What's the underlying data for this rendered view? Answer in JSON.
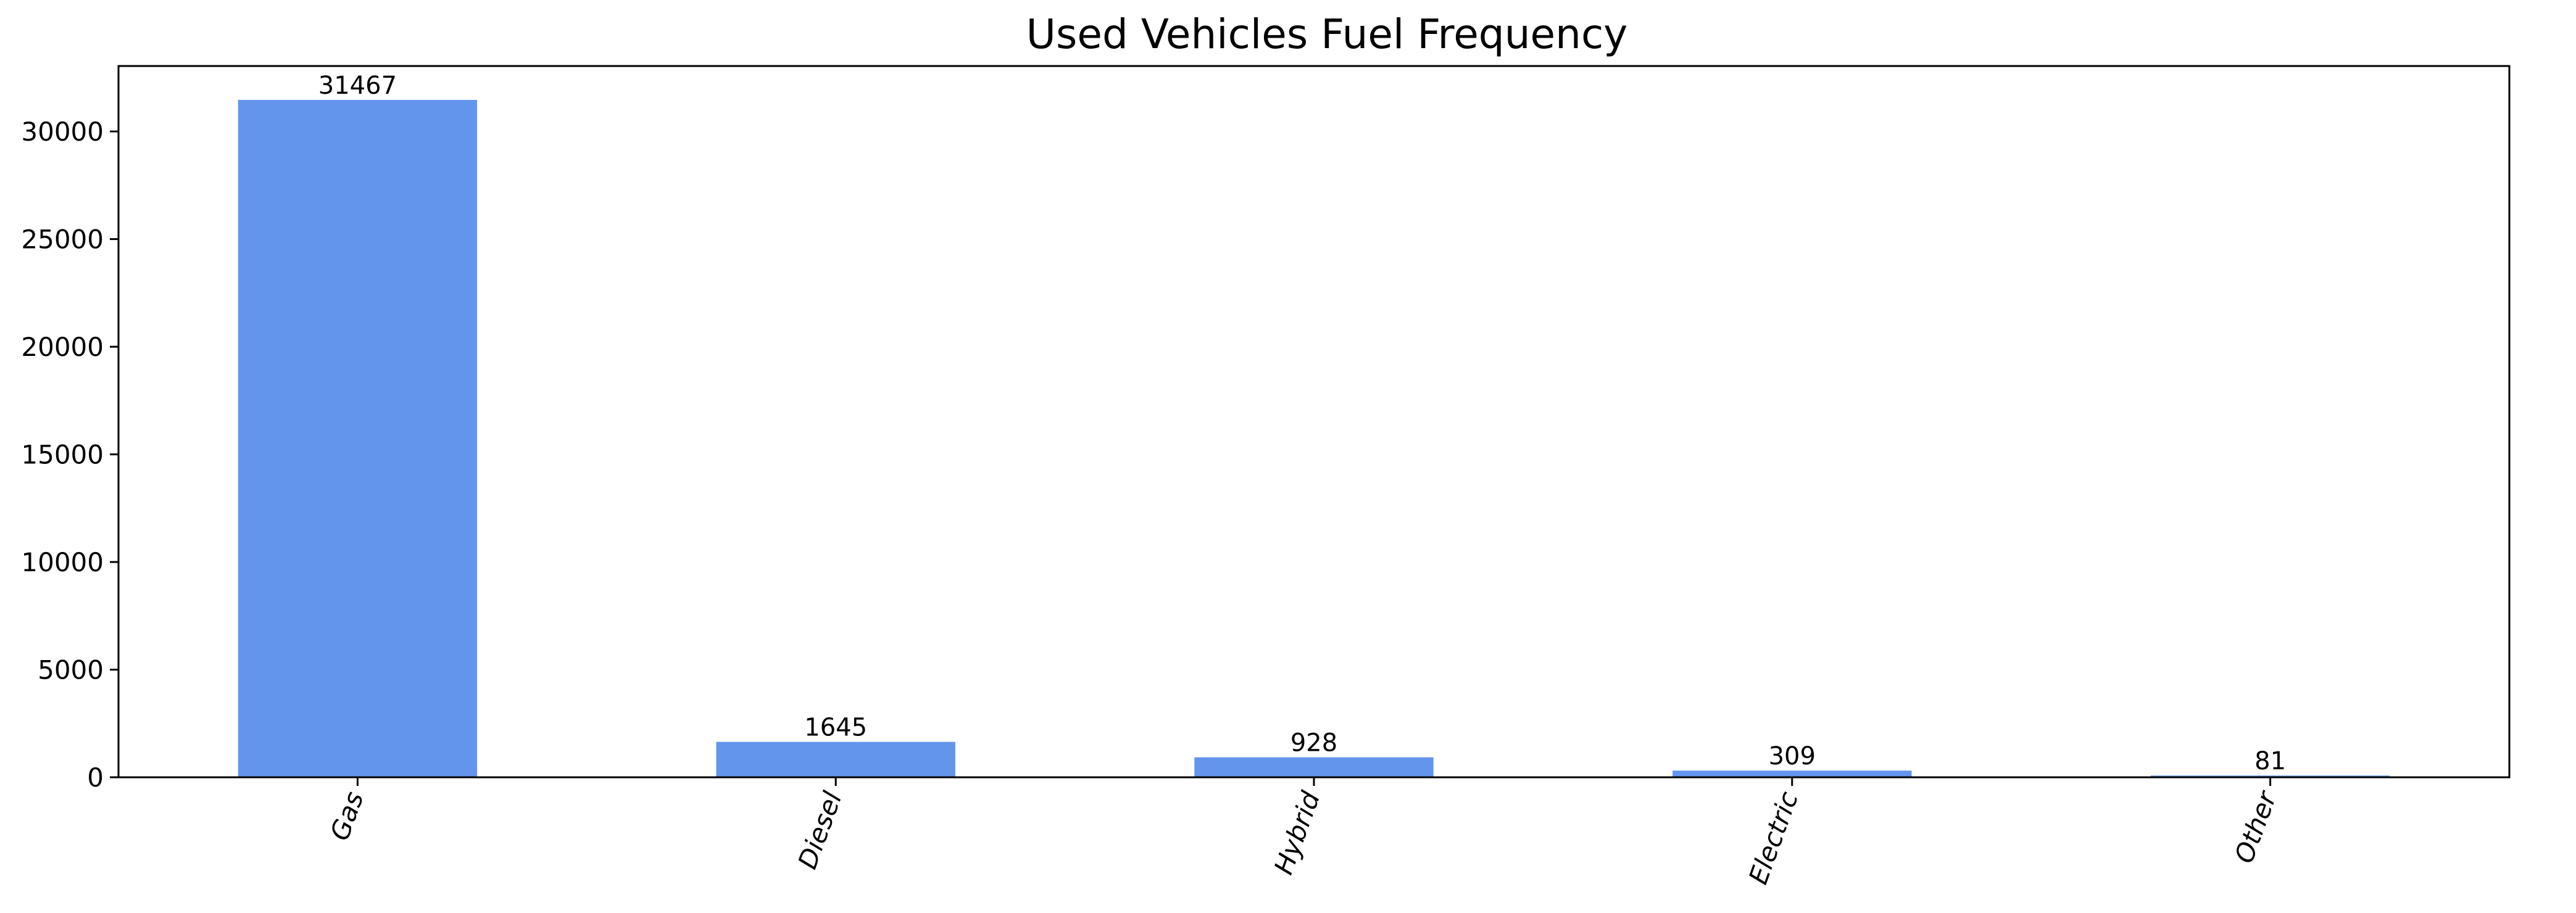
{
  "chart_data": {
    "type": "bar",
    "title": "Used Vehicles Fuel Frequency",
    "xlabel": "",
    "ylabel": "",
    "categories": [
      "Gas",
      "Diesel",
      "Hybrid",
      "Electric",
      "Other"
    ],
    "values": [
      31467,
      1645,
      928,
      309,
      81
    ],
    "data_labels": [
      "31467",
      "1645",
      "928",
      "309",
      "81"
    ],
    "ylim": [
      0,
      33040
    ],
    "yticks": [
      0,
      5000,
      10000,
      15000,
      20000,
      25000,
      30000
    ],
    "x_tick_rotation_deg": 70,
    "bar_color": "#6495ED",
    "grid": false,
    "legend": "none"
  }
}
